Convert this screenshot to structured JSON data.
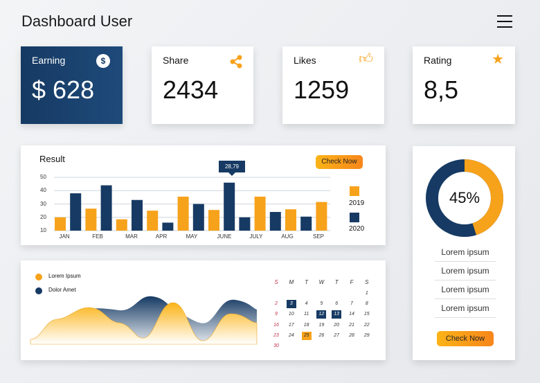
{
  "header": {
    "title": "Dashboard User",
    "menu_icon": "hamburger-icon"
  },
  "stats": [
    {
      "label": "Earning",
      "value": "$ 628",
      "icon": "dollar-icon"
    },
    {
      "label": "Share",
      "value": "2434",
      "icon": "share-icon"
    },
    {
      "label": "Likes",
      "value": "1259",
      "icon": "thumbs-up-icon"
    },
    {
      "label": "Rating",
      "value": "8,5",
      "icon": "star-icon"
    }
  ],
  "colors": {
    "navy": "#163a63",
    "orange": "#f7a21b"
  },
  "result": {
    "title": "Result",
    "button": "Check Now",
    "tooltip": "28,79"
  },
  "chart_data": {
    "type": "bar",
    "title": "Result",
    "ylim": [
      10,
      50
    ],
    "yticks": [
      "50",
      "40",
      "30",
      "20",
      "10"
    ],
    "categories": [
      "JAN",
      "FEB",
      "MAR",
      "APR",
      "MAY",
      "JUNE",
      "JULY",
      "AUG",
      "SEP"
    ],
    "legend": [
      "2019",
      "2020"
    ],
    "bars": [
      {
        "series": "2019",
        "value": 20
      },
      {
        "series": "2020",
        "value": 38
      },
      {
        "series": "2019",
        "value": 26.5
      },
      {
        "series": "2020",
        "value": 44
      },
      {
        "series": "2019",
        "value": 18.5
      },
      {
        "series": "2020",
        "value": 33
      },
      {
        "series": "2019",
        "value": 25
      },
      {
        "series": "2020",
        "value": 16
      },
      {
        "series": "2019",
        "value": 35.5
      },
      {
        "series": "2020",
        "value": 30
      },
      {
        "series": "2019",
        "value": 25.5
      },
      {
        "series": "2020",
        "value": 46
      },
      {
        "series": "2020",
        "value": 20
      },
      {
        "series": "2019",
        "value": 35.5
      },
      {
        "series": "2020",
        "value": 24
      },
      {
        "series": "2019",
        "value": 26
      },
      {
        "series": "2020",
        "value": 20.5
      },
      {
        "series": "2019",
        "value": 31.5
      }
    ]
  },
  "donut": {
    "percent": 45,
    "label": "45%",
    "items": [
      "Lorem ipsum",
      "Lorem ipsum",
      "Lorem ipsum",
      "Lorem ipsum"
    ],
    "button": "Check Now"
  },
  "area": {
    "legend": [
      "Lorem Ipsum",
      "Dolor Amet"
    ]
  },
  "calendar": {
    "days": [
      "S",
      "M",
      "T",
      "W",
      "T",
      "F",
      "S"
    ],
    "weeks": [
      [
        "",
        "",
        "",
        "",
        "",
        "",
        "1"
      ],
      [
        "2",
        "3",
        "4",
        "5",
        "6",
        "7",
        "8"
      ],
      [
        "9",
        "10",
        "11",
        "12",
        "13",
        "14",
        "15"
      ],
      [
        "16",
        "17",
        "18",
        "19",
        "20",
        "21",
        "22"
      ],
      [
        "23",
        "24",
        "25",
        "26",
        "27",
        "28",
        "29"
      ],
      [
        "30",
        "",
        "",
        "",
        "",
        "",
        ""
      ]
    ],
    "highlighted": [
      "3",
      "12",
      "13"
    ],
    "today": "25"
  }
}
